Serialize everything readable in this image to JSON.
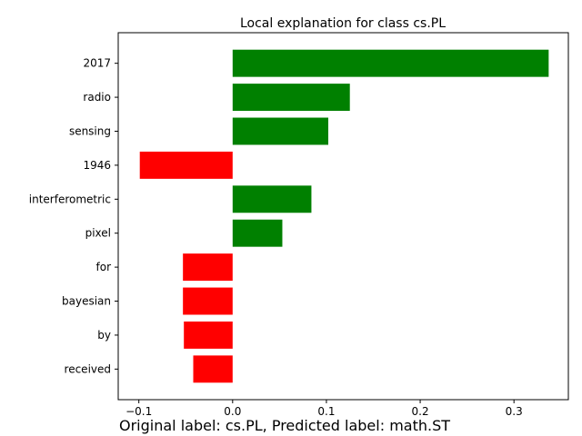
{
  "chart_data": {
    "type": "bar",
    "orientation": "horizontal",
    "title": "Local explanation for class cs.PL",
    "categories": [
      "2017",
      "radio",
      "sensing",
      "1946",
      "interferometric",
      "pixel",
      "for",
      "bayesian",
      "by",
      "received"
    ],
    "values": [
      0.337,
      0.125,
      0.102,
      -0.099,
      0.084,
      0.053,
      -0.053,
      -0.053,
      -0.052,
      -0.042
    ],
    "xlim": [
      -0.122,
      0.358
    ],
    "xticks": [
      -0.1,
      0.0,
      0.1,
      0.2,
      0.3
    ],
    "xtick_labels": [
      "−0.1",
      "0.0",
      "0.1",
      "0.2",
      "0.3"
    ],
    "positive_color": "#008000",
    "negative_color": "#ff0000",
    "grid": false,
    "legend": "none"
  },
  "caption": "Original label: cs.PL, Predicted label: math.ST"
}
